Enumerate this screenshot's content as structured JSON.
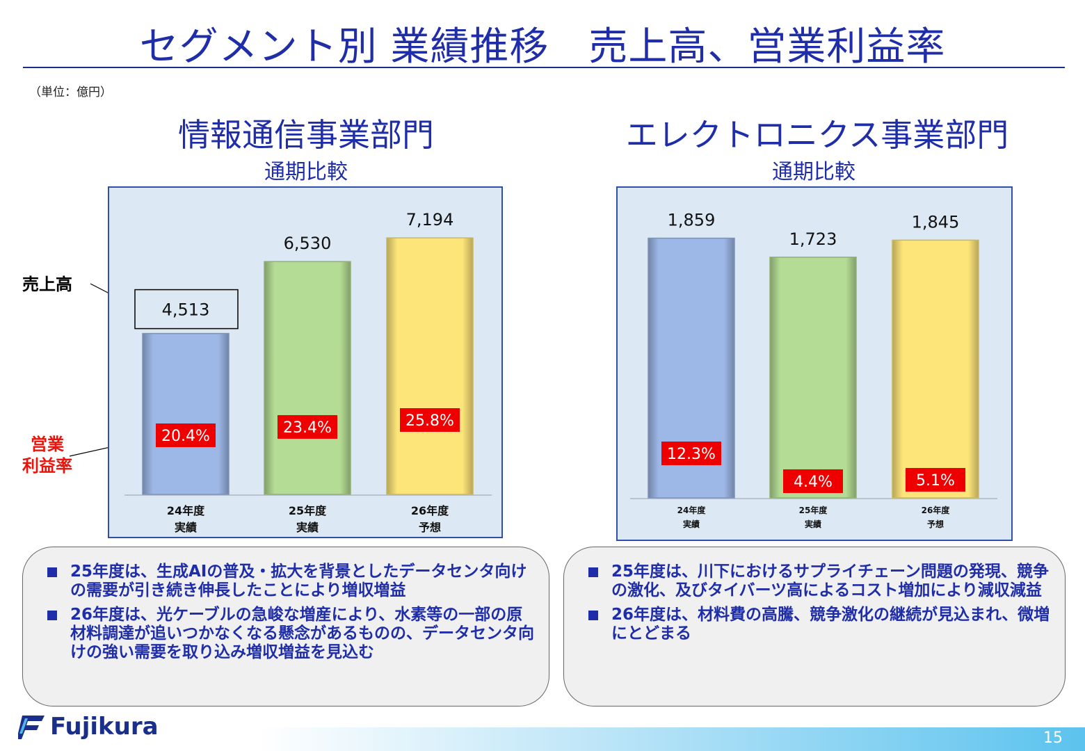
{
  "page": {
    "title": "セグメント別 業績推移　売上高、営業利益率",
    "unit": "（単位：億円）",
    "page_number": "15",
    "brand": "Fujikura"
  },
  "left": {
    "title": "情報通信事業部門",
    "subtitle": "通期比較",
    "annotation_sales": "売上高",
    "annotation_margin_line1": "営業",
    "annotation_margin_line2": "利益率",
    "notes": [
      "25年度は、生成AIの普及・拡大を背景としたデータセンタ向けの需要が引き続き伸長したことにより増収増益",
      "26年度は、光ケーブルの急峻な増産により、水素等の一部の原材料調達が追いつかなくなる懸念があるものの、データセンタ向けの強い需要を取り込み増収増益を見込む"
    ]
  },
  "right": {
    "title": "エレクトロニクス事業部門",
    "subtitle": "通期比較",
    "notes": [
      "25年度は、川下におけるサプライチェーン問題の発現、競争の激化、及びタイバーツ高によるコスト増加により減収減益",
      "26年度は、材料費の高騰、競争激化の継続が見込まれ、微増にとどまる"
    ]
  },
  "chart_data": [
    {
      "type": "bar",
      "categories": [
        [
          "24年度",
          "実績"
        ],
        [
          "25年度",
          "実績"
        ],
        [
          "26年度",
          "予想"
        ]
      ],
      "values": [
        4513,
        6530,
        7194
      ],
      "value_labels": [
        "4,513",
        "6,530",
        "7,194"
      ],
      "margin_labels": [
        "20.4%",
        "23.4%",
        "25.8%"
      ],
      "margins": [
        20.4,
        23.4,
        25.8
      ],
      "colors": [
        "#9db7e6",
        "#b5dc94",
        "#fde57a"
      ],
      "ylim": [
        0,
        8600
      ]
    },
    {
      "type": "bar",
      "categories": [
        [
          "24年度",
          "実績"
        ],
        [
          "25年度",
          "実績"
        ],
        [
          "26年度",
          "予想"
        ]
      ],
      "values": [
        1859,
        1723,
        1845
      ],
      "value_labels": [
        "1,859",
        "1,723",
        "1,845"
      ],
      "margin_labels": [
        "12.3%",
        "4.4%",
        "5.1%"
      ],
      "margins": [
        12.3,
        4.4,
        5.1
      ],
      "colors": [
        "#9db7e6",
        "#b5dc94",
        "#fde57a"
      ],
      "ylim": [
        0,
        2220
      ]
    }
  ]
}
